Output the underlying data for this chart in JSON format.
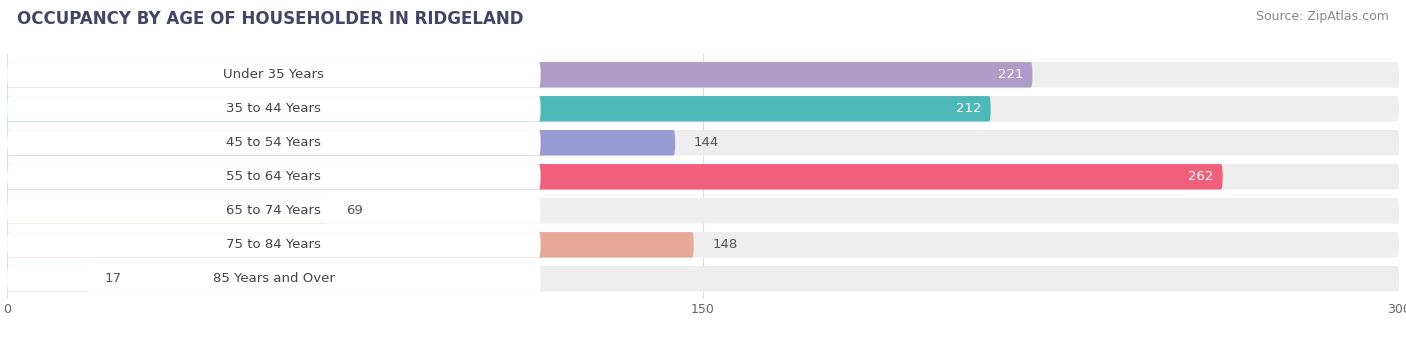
{
  "title": "OCCUPANCY BY AGE OF HOUSEHOLDER IN RIDGELAND",
  "source": "Source: ZipAtlas.com",
  "categories": [
    "Under 35 Years",
    "35 to 44 Years",
    "45 to 54 Years",
    "55 to 64 Years",
    "65 to 74 Years",
    "75 to 84 Years",
    "85 Years and Over"
  ],
  "values": [
    221,
    212,
    144,
    262,
    69,
    148,
    17
  ],
  "bar_colors": [
    "#b09cc8",
    "#4db8b8",
    "#9999d4",
    "#f0607a",
    "#f7c898",
    "#e8a898",
    "#a8c8e8"
  ],
  "xlim_data": 300,
  "xticks": [
    0,
    150,
    300
  ],
  "background_color": "#ffffff",
  "bar_bg_color": "#eeeeee",
  "title_fontsize": 12,
  "source_fontsize": 9,
  "label_fontsize": 9.5,
  "value_fontsize": 9.5,
  "label_bg_color": "#ffffff",
  "white_text_threshold": 200
}
